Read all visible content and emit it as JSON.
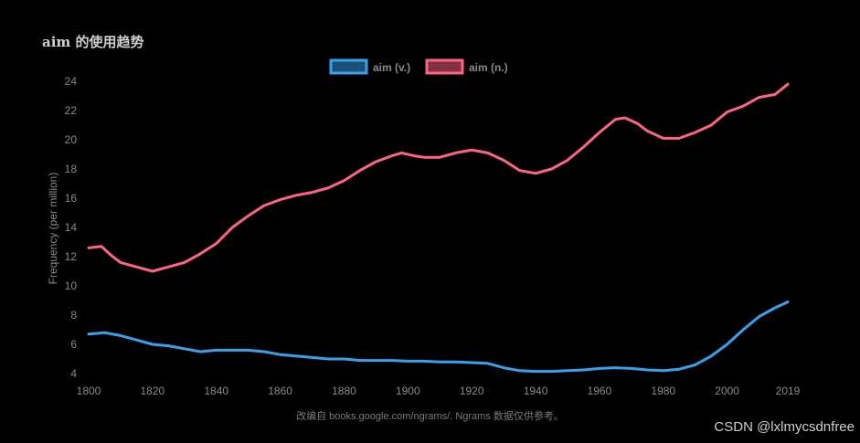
{
  "title": "aim 的使用趋势",
  "source_note": "改编自 books.google.com/ngrams/. Ngrams 数据仅供参考。",
  "watermark": "CSDN @lxlmycsdnfree",
  "colors": {
    "background": "#000000",
    "verb": "#36a2eb",
    "noun": "#ff6384",
    "text": "#8a8a8a"
  },
  "chart_data": {
    "type": "line",
    "title": "aim 的使用趋势",
    "xlabel": "",
    "ylabel": "Frequency (per million)",
    "xlim": [
      1800,
      2019
    ],
    "ylim": [
      4,
      24
    ],
    "x_ticks": [
      "1800",
      "1820",
      "1840",
      "1860",
      "1880",
      "1900",
      "1920",
      "1940",
      "1960",
      "1980",
      "2000",
      "2019"
    ],
    "y_ticks": [
      4,
      6,
      8,
      10,
      12,
      14,
      16,
      18,
      20,
      22,
      24
    ],
    "grid": false,
    "legend_position": "top-center",
    "series": [
      {
        "name": "aim (v.)",
        "color": "#36a2eb",
        "points": [
          [
            1800,
            6.7
          ],
          [
            1805,
            6.8
          ],
          [
            1810,
            6.6
          ],
          [
            1815,
            6.3
          ],
          [
            1820,
            6.0
          ],
          [
            1825,
            5.9
          ],
          [
            1830,
            5.7
          ],
          [
            1835,
            5.5
          ],
          [
            1840,
            5.6
          ],
          [
            1845,
            5.6
          ],
          [
            1850,
            5.6
          ],
          [
            1855,
            5.5
          ],
          [
            1860,
            5.3
          ],
          [
            1865,
            5.2
          ],
          [
            1870,
            5.1
          ],
          [
            1875,
            5.0
          ],
          [
            1880,
            5.0
          ],
          [
            1885,
            4.9
          ],
          [
            1890,
            4.9
          ],
          [
            1895,
            4.9
          ],
          [
            1900,
            4.85
          ],
          [
            1905,
            4.85
          ],
          [
            1910,
            4.8
          ],
          [
            1915,
            4.8
          ],
          [
            1920,
            4.75
          ],
          [
            1925,
            4.7
          ],
          [
            1930,
            4.4
          ],
          [
            1935,
            4.2
          ],
          [
            1940,
            4.15
          ],
          [
            1945,
            4.15
          ],
          [
            1950,
            4.2
          ],
          [
            1955,
            4.25
          ],
          [
            1960,
            4.35
          ],
          [
            1965,
            4.4
          ],
          [
            1970,
            4.35
          ],
          [
            1975,
            4.25
          ],
          [
            1980,
            4.2
          ],
          [
            1985,
            4.3
          ],
          [
            1990,
            4.6
          ],
          [
            1995,
            5.2
          ],
          [
            2000,
            6.0
          ],
          [
            2005,
            7.0
          ],
          [
            2010,
            7.9
          ],
          [
            2015,
            8.5
          ],
          [
            2019,
            8.9
          ]
        ]
      },
      {
        "name": "aim (n.)",
        "color": "#ff6384",
        "points": [
          [
            1800,
            12.6
          ],
          [
            1804,
            12.7
          ],
          [
            1807,
            12.1
          ],
          [
            1810,
            11.6
          ],
          [
            1815,
            11.3
          ],
          [
            1820,
            11.0
          ],
          [
            1825,
            11.3
          ],
          [
            1830,
            11.6
          ],
          [
            1835,
            12.2
          ],
          [
            1840,
            12.9
          ],
          [
            1845,
            14.0
          ],
          [
            1850,
            14.8
          ],
          [
            1855,
            15.5
          ],
          [
            1860,
            15.9
          ],
          [
            1865,
            16.2
          ],
          [
            1870,
            16.4
          ],
          [
            1875,
            16.7
          ],
          [
            1880,
            17.2
          ],
          [
            1885,
            17.9
          ],
          [
            1890,
            18.5
          ],
          [
            1895,
            18.9
          ],
          [
            1898,
            19.1
          ],
          [
            1902,
            18.9
          ],
          [
            1905,
            18.8
          ],
          [
            1910,
            18.8
          ],
          [
            1915,
            19.1
          ],
          [
            1920,
            19.3
          ],
          [
            1925,
            19.1
          ],
          [
            1930,
            18.6
          ],
          [
            1935,
            17.9
          ],
          [
            1940,
            17.7
          ],
          [
            1945,
            18.0
          ],
          [
            1950,
            18.6
          ],
          [
            1955,
            19.5
          ],
          [
            1960,
            20.5
          ],
          [
            1965,
            21.4
          ],
          [
            1968,
            21.5
          ],
          [
            1972,
            21.1
          ],
          [
            1975,
            20.6
          ],
          [
            1980,
            20.1
          ],
          [
            1985,
            20.1
          ],
          [
            1990,
            20.5
          ],
          [
            1995,
            21.0
          ],
          [
            2000,
            21.9
          ],
          [
            2005,
            22.3
          ],
          [
            2010,
            22.9
          ],
          [
            2015,
            23.1
          ],
          [
            2019,
            23.8
          ]
        ]
      }
    ]
  }
}
